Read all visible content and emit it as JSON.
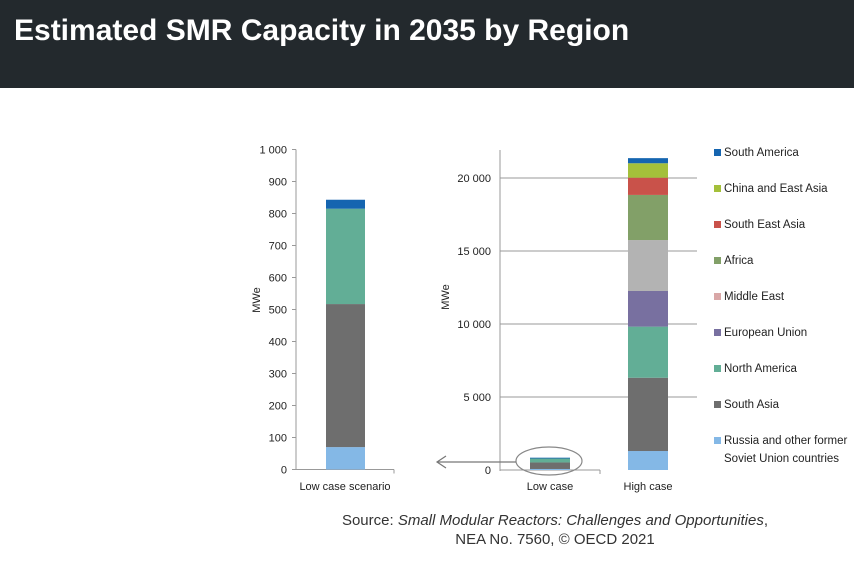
{
  "header": {
    "title": "Estimated SMR Capacity in 2035 by Region"
  },
  "source": {
    "prefix": "Source: ",
    "italic1": "Small Modular Reactors: Challenges and Opportunities",
    "rest": ", NEA No. 7560, © OECD 2021"
  },
  "chart_data": [
    {
      "type": "bar",
      "stacked": true,
      "title": "",
      "ylabel": "MWe",
      "ylim": [
        0,
        1000
      ],
      "yticks": [
        0,
        100,
        200,
        300,
        400,
        500,
        600,
        700,
        800,
        900,
        1000
      ],
      "ytick_labels": [
        "0",
        "100",
        "200",
        "300",
        "400",
        "500",
        "600",
        "700",
        "800",
        "900",
        "1 000"
      ],
      "categories": [
        "Low case scenario"
      ],
      "series": [
        {
          "name": "Russia and other former Soviet Union countries",
          "values": [
            70
          ]
        },
        {
          "name": "South Asia",
          "values": [
            447
          ]
        },
        {
          "name": "North America",
          "values": [
            298
          ]
        },
        {
          "name": "South America",
          "values": [
            28
          ]
        }
      ]
    },
    {
      "type": "bar",
      "stacked": true,
      "title": "",
      "ylabel": "MWe",
      "ylim": [
        0,
        22000
      ],
      "grid": true,
      "yticks": [
        0,
        5000,
        10000,
        15000,
        20000
      ],
      "ytick_labels": [
        "0",
        "5 000",
        "10 000",
        "15 000",
        "20 000"
      ],
      "categories": [
        "Low case",
        "High case"
      ],
      "legend_position": "right",
      "series": [
        {
          "name": "Russia and other former Soviet Union countries",
          "legend_lines": [
            "Russia and other former",
            "Soviet Union countries"
          ],
          "color": "#84b8e6",
          "values": [
            70,
            1300
          ]
        },
        {
          "name": "South Asia",
          "color": "#6e6e6e",
          "values": [
            447,
            5020
          ]
        },
        {
          "name": "North America",
          "color": "#62ae96",
          "values": [
            298,
            3500
          ]
        },
        {
          "name": "European Union",
          "color": "#7870a0",
          "values": [
            0,
            2440
          ]
        },
        {
          "name": "Middle East",
          "color": "#d9a7a7",
          "bar_color": "#b3b3b3",
          "values": [
            0,
            3490
          ]
        },
        {
          "name": "Africa",
          "color": "#82a068",
          "values": [
            0,
            3090
          ]
        },
        {
          "name": "South East Asia",
          "color": "#c9524a",
          "values": [
            0,
            1180
          ]
        },
        {
          "name": "China and East Asia",
          "color": "#a4c03a",
          "values": [
            0,
            990
          ]
        },
        {
          "name": "South America",
          "color": "#1565b0",
          "values": [
            28,
            350
          ]
        }
      ]
    }
  ]
}
